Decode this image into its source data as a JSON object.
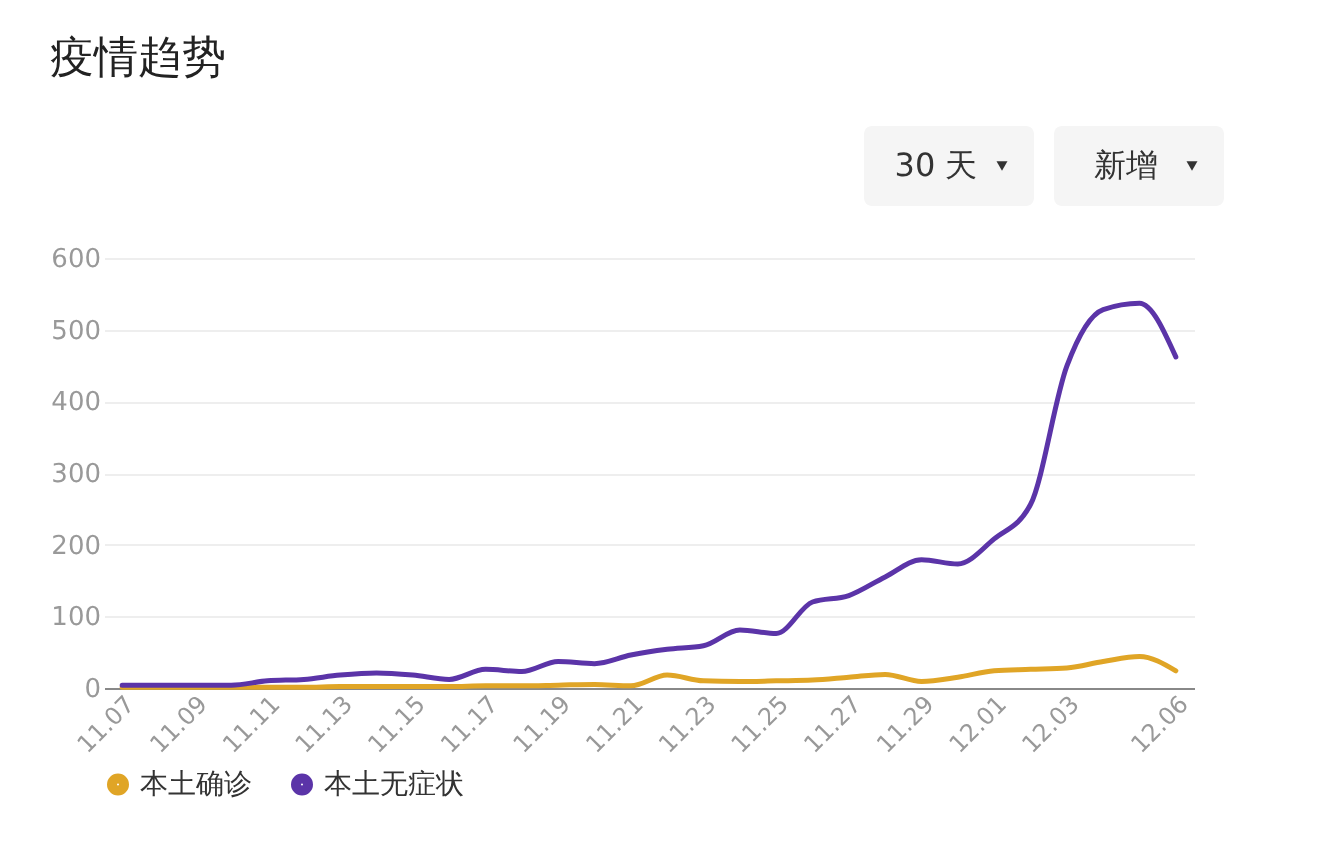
{
  "chart_data": {
    "type": "line",
    "title": "疫情趋势",
    "annotations": [
      "30 天",
      "新增"
    ],
    "categories": [
      "11.07",
      null,
      "11.09",
      null,
      "11.11",
      null,
      "11.13",
      null,
      "11.15",
      null,
      "11.17",
      null,
      "11.19",
      null,
      "11.21",
      null,
      "11.23",
      null,
      "11.25",
      null,
      "11.27",
      null,
      "11.29",
      null,
      "12.01",
      null,
      "12.03",
      null,
      null,
      "12.06"
    ],
    "series": [
      {
        "name": "本土确诊",
        "color": "#e0a526",
        "values": [
          1,
          1,
          1,
          1,
          1,
          1,
          2,
          2,
          2,
          2,
          3,
          3,
          4,
          5,
          3,
          18,
          10,
          9,
          10,
          11,
          15,
          19,
          9,
          15,
          24,
          26,
          28,
          37,
          44,
          24
        ]
      },
      {
        "name": "本土无症状",
        "color": "#5b34a8",
        "values": [
          4,
          4,
          4,
          4,
          10,
          12,
          18,
          21,
          18,
          12,
          26,
          23,
          37,
          34,
          46,
          54,
          59,
          81,
          76,
          120,
          129,
          155,
          179,
          173,
          208,
          256,
          449,
          528,
          537,
          462
        ]
      }
    ],
    "ylim": [
      0,
      600
    ],
    "yticks": [
      0,
      100,
      200,
      300,
      400,
      500,
      600
    ],
    "grid": "y",
    "legend": "bottom",
    "marker": "none",
    "line_style": "solid"
  }
}
